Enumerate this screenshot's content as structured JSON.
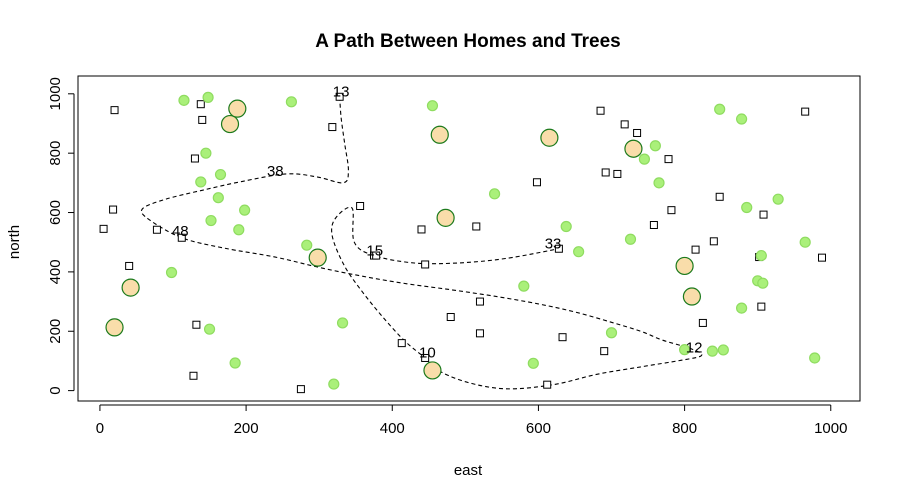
{
  "chart_data": {
    "type": "scatter",
    "title": "A Path Between Homes and Trees",
    "xlabel": "east",
    "ylabel": "north",
    "xlim": [
      -30,
      1040
    ],
    "ylim": [
      -35,
      1060
    ],
    "xticks": [
      0,
      200,
      400,
      600,
      800,
      1000
    ],
    "yticks": [
      0,
      200,
      400,
      600,
      800,
      1000
    ],
    "grid": false,
    "colors": {
      "tree_small_fill": "#aaf07a",
      "tree_small_stroke": "#8fdc60",
      "tree_large_fill": "#f9ddaa",
      "tree_large_stroke": "#1c7a1c",
      "home": "#000000",
      "path": "#000000"
    },
    "homes": [
      [
        20,
        945
      ],
      [
        138,
        965
      ],
      [
        140,
        912
      ],
      [
        130,
        782
      ],
      [
        18,
        610
      ],
      [
        5,
        545
      ],
      [
        78,
        542
      ],
      [
        112,
        515
      ],
      [
        40,
        420
      ],
      [
        132,
        222
      ],
      [
        128,
        50
      ],
      [
        275,
        5
      ],
      [
        318,
        888
      ],
      [
        328,
        990
      ],
      [
        356,
        622
      ],
      [
        375,
        455
      ],
      [
        378,
        455
      ],
      [
        413,
        160
      ],
      [
        440,
        543
      ],
      [
        445,
        425
      ],
      [
        445,
        110
      ],
      [
        480,
        248
      ],
      [
        515,
        553
      ],
      [
        520,
        300
      ],
      [
        520,
        193
      ],
      [
        598,
        702
      ],
      [
        612,
        20
      ],
      [
        628,
        478
      ],
      [
        633,
        180
      ],
      [
        685,
        943
      ],
      [
        690,
        133
      ],
      [
        692,
        735
      ],
      [
        708,
        730
      ],
      [
        718,
        897
      ],
      [
        735,
        868
      ],
      [
        758,
        558
      ],
      [
        778,
        780
      ],
      [
        782,
        608
      ],
      [
        815,
        475
      ],
      [
        825,
        228
      ],
      [
        840,
        503
      ],
      [
        848,
        653
      ],
      [
        902,
        450
      ],
      [
        905,
        283
      ],
      [
        908,
        593
      ],
      [
        965,
        940
      ],
      [
        988,
        448
      ]
    ],
    "trees_small": [
      [
        115,
        978
      ],
      [
        148,
        988
      ],
      [
        145,
        800
      ],
      [
        138,
        703
      ],
      [
        165,
        728
      ],
      [
        162,
        650
      ],
      [
        152,
        573
      ],
      [
        198,
        608
      ],
      [
        190,
        542
      ],
      [
        98,
        398
      ],
      [
        150,
        207
      ],
      [
        185,
        93
      ],
      [
        262,
        973
      ],
      [
        283,
        490
      ],
      [
        332,
        228
      ],
      [
        320,
        22
      ],
      [
        455,
        960
      ],
      [
        540,
        663
      ],
      [
        580,
        352
      ],
      [
        593,
        92
      ],
      [
        638,
        553
      ],
      [
        655,
        468
      ],
      [
        700,
        195
      ],
      [
        726,
        510
      ],
      [
        745,
        780
      ],
      [
        760,
        825
      ],
      [
        765,
        700
      ],
      [
        800,
        138
      ],
      [
        838,
        133
      ],
      [
        853,
        137
      ],
      [
        848,
        948
      ],
      [
        878,
        915
      ],
      [
        878,
        278
      ],
      [
        885,
        617
      ],
      [
        900,
        370
      ],
      [
        907,
        362
      ],
      [
        905,
        455
      ],
      [
        928,
        645
      ],
      [
        965,
        500
      ],
      [
        978,
        110
      ]
    ],
    "trees_large": [
      [
        20,
        213
      ],
      [
        42,
        347
      ],
      [
        178,
        898
      ],
      [
        188,
        950
      ],
      [
        298,
        448
      ],
      [
        455,
        68
      ],
      [
        465,
        862
      ],
      [
        473,
        582
      ],
      [
        615,
        852
      ],
      [
        730,
        815
      ],
      [
        800,
        420
      ],
      [
        810,
        317
      ]
    ],
    "path": [
      [
        328,
        990
      ],
      [
        330,
        920
      ],
      [
        335,
        830
      ],
      [
        340,
        740
      ],
      [
        333,
        700
      ],
      [
        297,
        720
      ],
      [
        255,
        730
      ],
      [
        195,
        705
      ],
      [
        140,
        675
      ],
      [
        90,
        645
      ],
      [
        58,
        612
      ],
      [
        68,
        575
      ],
      [
        112,
        515
      ],
      [
        170,
        480
      ],
      [
        240,
        450
      ],
      [
        300,
        415
      ],
      [
        360,
        385
      ],
      [
        420,
        360
      ],
      [
        480,
        340
      ],
      [
        540,
        318
      ],
      [
        600,
        292
      ],
      [
        650,
        265
      ],
      [
        700,
        230
      ],
      [
        740,
        200
      ],
      [
        770,
        170
      ],
      [
        810,
        140
      ],
      [
        823,
        118
      ],
      [
        795,
        102
      ],
      [
        740,
        80
      ],
      [
        680,
        55
      ],
      [
        620,
        20
      ],
      [
        555,
        6
      ],
      [
        500,
        30
      ],
      [
        460,
        72
      ],
      [
        445,
        110
      ],
      [
        418,
        165
      ],
      [
        388,
        245
      ],
      [
        360,
        330
      ],
      [
        335,
        418
      ],
      [
        318,
        520
      ],
      [
        322,
        580
      ],
      [
        345,
        615
      ],
      [
        348,
        500
      ],
      [
        375,
        455
      ],
      [
        430,
        430
      ],
      [
        490,
        430
      ],
      [
        555,
        445
      ],
      [
        628,
        478
      ]
    ],
    "labels": [
      {
        "text": "13",
        "x": 330,
        "y": 1008
      },
      {
        "text": "38",
        "x": 240,
        "y": 740
      },
      {
        "text": "48",
        "x": 110,
        "y": 538
      },
      {
        "text": "15",
        "x": 376,
        "y": 472
      },
      {
        "text": "33",
        "x": 620,
        "y": 496
      },
      {
        "text": "10",
        "x": 448,
        "y": 128
      },
      {
        "text": "12",
        "x": 813,
        "y": 146
      }
    ]
  }
}
